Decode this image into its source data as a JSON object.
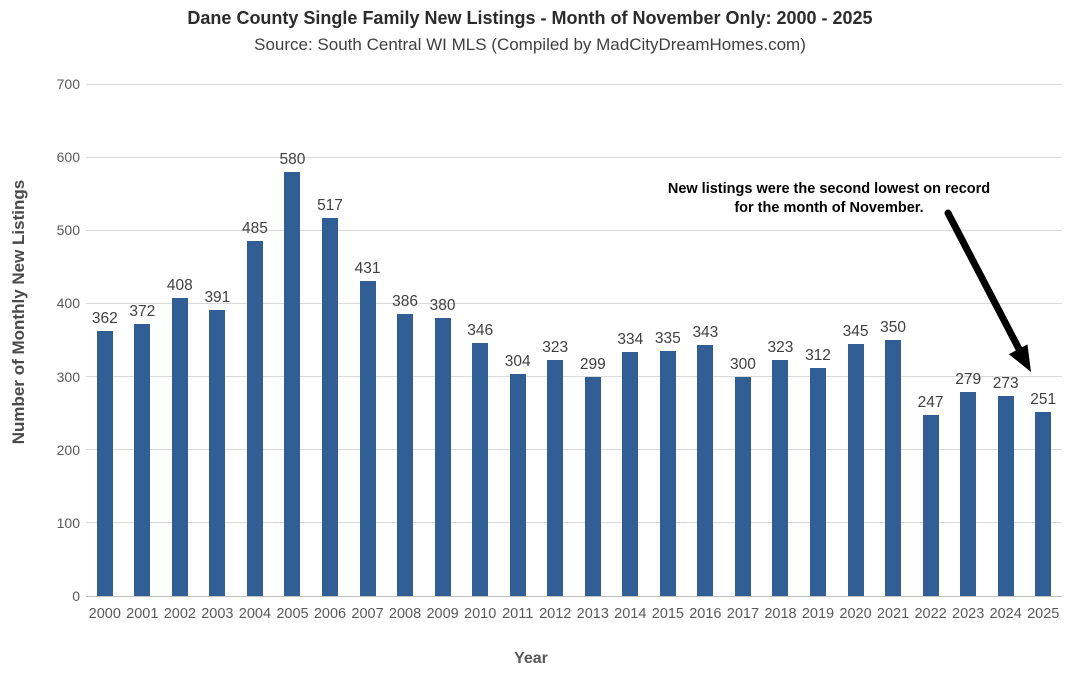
{
  "title": "Dane County Single Family New Listings - Month of November Only: 2000 - 2025",
  "subtitle": "Source: South Central WI MLS (Compiled by MadCityDreamHomes.com)",
  "annotation": {
    "line1": "New listings were the second lowest on record",
    "line2": "for the month of November."
  },
  "chart_data": {
    "type": "bar",
    "categories": [
      "2000",
      "2001",
      "2002",
      "2003",
      "2004",
      "2005",
      "2006",
      "2007",
      "2008",
      "2009",
      "2010",
      "2011",
      "2012",
      "2013",
      "2014",
      "2015",
      "2016",
      "2017",
      "2018",
      "2019",
      "2020",
      "2021",
      "2022",
      "2023",
      "2024",
      "2025"
    ],
    "values": [
      362,
      372,
      408,
      391,
      485,
      580,
      517,
      431,
      386,
      380,
      346,
      304,
      323,
      299,
      334,
      335,
      343,
      300,
      323,
      312,
      345,
      350,
      247,
      279,
      273,
      251
    ],
    "title": "Dane County Single Family New Listings - Month of November Only: 2000 - 2025",
    "subtitle": "Source: South Central WI MLS (Compiled by MadCityDreamHomes.com)",
    "xlabel": "Year",
    "ylabel": "Number of Monthly New Listings",
    "ylim": [
      0,
      700
    ],
    "yticks": [
      0,
      100,
      200,
      300,
      400,
      500,
      600,
      700
    ],
    "grid": "horizontal",
    "legend": "none",
    "data_labels": true,
    "annotation_text": "New listings were the second lowest on record for the month of November.",
    "annotation_points_to": "2025"
  },
  "colors": {
    "bar": "#315E94",
    "gridline": "#d9d9d9",
    "axis_line": "#bfbfbf",
    "tick_label": "#595959",
    "value_label": "#404040",
    "title_text": "#2b2b2b",
    "annotation_text": "#000000",
    "arrow": "#000000",
    "background": "#ffffff"
  }
}
